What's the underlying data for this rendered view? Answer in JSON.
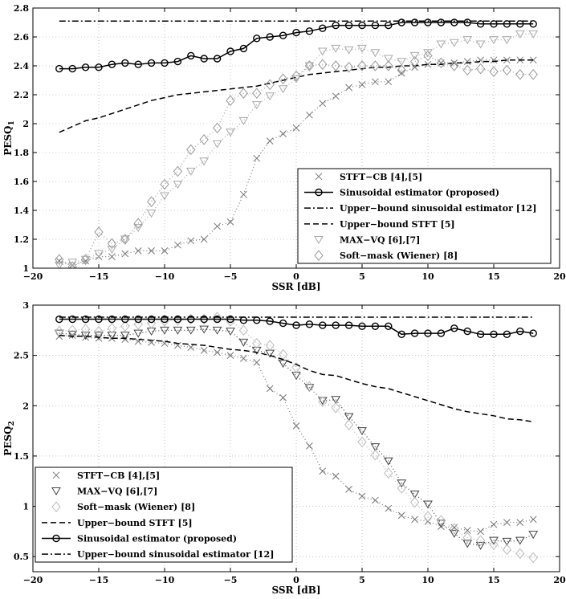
{
  "chart_data": [
    {
      "type": "line",
      "ylabel": "PESQ",
      "ylabel_sub": "1",
      "xlabel": "SSR [dB]",
      "xlim": [
        -20,
        20
      ],
      "ylim": [
        1,
        2.8
      ],
      "xticks": [
        "−20",
        "−15",
        "−10",
        "−5",
        "0",
        "5",
        "10",
        "15",
        "20"
      ],
      "yticks": [
        "1",
        "1.2",
        "1.4",
        "1.6",
        "1.8",
        "2",
        "2.2",
        "2.4",
        "2.6",
        "2.8"
      ],
      "grid": true,
      "legend_position": "bottom-right",
      "x": [
        -18,
        -17,
        -16,
        -15,
        -14,
        -13,
        -12,
        -11,
        -10,
        -9,
        -8,
        -7,
        -6,
        -5,
        -4,
        -3,
        -2,
        -1,
        0,
        1,
        2,
        3,
        4,
        5,
        6,
        7,
        8,
        9,
        10,
        11,
        12,
        13,
        14,
        15,
        16,
        17,
        18
      ],
      "series": [
        {
          "name": "STFT−CB [4],[5]",
          "marker": "x",
          "line": "dotted",
          "color": "#777777",
          "values": [
            1.05,
            1.02,
            1.05,
            1.08,
            1.08,
            1.1,
            1.12,
            1.12,
            1.12,
            1.16,
            1.19,
            1.2,
            1.29,
            1.32,
            1.51,
            1.76,
            1.88,
            1.93,
            1.97,
            2.06,
            2.14,
            2.19,
            2.25,
            2.27,
            2.29,
            2.29,
            2.35,
            2.39,
            2.41,
            2.42,
            2.42,
            2.43,
            2.44,
            2.44,
            2.44,
            2.44,
            2.44
          ]
        },
        {
          "name": "Sinusoidal estimator (proposed)",
          "marker": "o",
          "line": "solid",
          "color": "#000000",
          "values": [
            2.38,
            2.38,
            2.39,
            2.39,
            2.41,
            2.42,
            2.41,
            2.42,
            2.42,
            2.43,
            2.47,
            2.45,
            2.45,
            2.5,
            2.52,
            2.59,
            2.6,
            2.61,
            2.63,
            2.64,
            2.66,
            2.68,
            2.68,
            2.68,
            2.68,
            2.68,
            2.7,
            2.7,
            2.7,
            2.7,
            2.7,
            2.7,
            2.69,
            2.69,
            2.69,
            2.69,
            2.69
          ]
        },
        {
          "name": "Upper−bound sinusoidal estimator [12]",
          "marker": "none",
          "line": "dashdot",
          "color": "#000000",
          "values": [
            2.71,
            2.71,
            2.71,
            2.71,
            2.71,
            2.71,
            2.71,
            2.71,
            2.71,
            2.71,
            2.71,
            2.71,
            2.71,
            2.71,
            2.71,
            2.71,
            2.71,
            2.71,
            2.71,
            2.71,
            2.71,
            2.71,
            2.71,
            2.71,
            2.71,
            2.71,
            2.71,
            2.71,
            2.71,
            2.71,
            2.71,
            2.71,
            2.71,
            2.71,
            2.71,
            2.71,
            2.71
          ]
        },
        {
          "name": "Upper−bound STFT [5]",
          "marker": "none",
          "line": "dashed",
          "color": "#000000",
          "values": [
            1.94,
            1.98,
            2.02,
            2.04,
            2.07,
            2.1,
            2.13,
            2.16,
            2.18,
            2.2,
            2.21,
            2.22,
            2.23,
            2.24,
            2.25,
            2.26,
            2.28,
            2.3,
            2.32,
            2.34,
            2.35,
            2.36,
            2.37,
            2.38,
            2.39,
            2.39,
            2.4,
            2.4,
            2.41,
            2.41,
            2.42,
            2.42,
            2.43,
            2.43,
            2.44,
            2.44,
            2.44
          ]
        },
        {
          "name": "MAX−VQ [6],[7]",
          "marker": "triangle-down",
          "line": "dotted",
          "color": "#aaaaaa",
          "values": [
            1.02,
            1.04,
            1.06,
            1.1,
            1.13,
            1.2,
            1.28,
            1.38,
            1.5,
            1.58,
            1.67,
            1.74,
            1.86,
            1.94,
            2.02,
            2.13,
            2.19,
            2.24,
            2.31,
            2.4,
            2.5,
            2.52,
            2.51,
            2.52,
            2.49,
            2.45,
            2.43,
            2.47,
            2.49,
            2.55,
            2.56,
            2.58,
            2.55,
            2.58,
            2.58,
            2.62,
            2.62
          ]
        },
        {
          "name": "Soft−mask (Wiener) [8]",
          "marker": "diamond",
          "line": "dotted",
          "color": "#999999",
          "values": [
            1.06,
            1.01,
            1.06,
            1.25,
            1.17,
            1.2,
            1.31,
            1.46,
            1.58,
            1.67,
            1.82,
            1.89,
            1.97,
            2.16,
            2.21,
            2.21,
            2.27,
            2.31,
            2.33,
            2.4,
            2.41,
            2.4,
            2.39,
            2.4,
            2.4,
            2.4,
            2.37,
            2.43,
            2.47,
            2.42,
            2.4,
            2.37,
            2.38,
            2.36,
            2.37,
            2.34,
            2.34
          ]
        }
      ]
    },
    {
      "type": "line",
      "ylabel": "PESQ",
      "ylabel_sub": "2",
      "xlabel": "SSR [dB]",
      "xlim": [
        -20,
        20
      ],
      "ylim": [
        0.35,
        3
      ],
      "xticks": [
        "−20",
        "−15",
        "−10",
        "−5",
        "0",
        "5",
        "10",
        "15",
        "20"
      ],
      "yticks": [
        "0.5",
        "1",
        "1.5",
        "2",
        "2.5",
        "3"
      ],
      "grid": true,
      "legend_position": "bottom-left",
      "x": [
        -18,
        -17,
        -16,
        -15,
        -14,
        -13,
        -12,
        -11,
        -10,
        -9,
        -8,
        -7,
        -6,
        -5,
        -4,
        -3,
        -2,
        -1,
        0,
        1,
        2,
        3,
        4,
        5,
        6,
        7,
        8,
        9,
        10,
        11,
        12,
        13,
        14,
        15,
        16,
        17,
        18
      ],
      "series": [
        {
          "name": "STFT−CB [4],[5]",
          "marker": "x",
          "line": "dotted",
          "color": "#777777",
          "values": [
            2.69,
            2.7,
            2.68,
            2.67,
            2.67,
            2.66,
            2.64,
            2.63,
            2.62,
            2.6,
            2.58,
            2.55,
            2.53,
            2.5,
            2.47,
            2.43,
            2.17,
            2.08,
            1.8,
            1.6,
            1.35,
            1.3,
            1.17,
            1.1,
            1.06,
            0.98,
            0.91,
            0.87,
            0.85,
            0.8,
            0.79,
            0.76,
            0.75,
            0.82,
            0.84,
            0.84,
            0.87
          ]
        },
        {
          "name": "MAX−VQ [6],[7]",
          "marker": "triangle-down",
          "line": "dotted",
          "color": "#444444",
          "values": [
            2.72,
            2.71,
            2.7,
            2.7,
            2.7,
            2.7,
            2.72,
            2.74,
            2.75,
            2.75,
            2.75,
            2.76,
            2.75,
            2.74,
            2.63,
            2.55,
            2.52,
            2.42,
            2.3,
            2.18,
            2.05,
            2.06,
            1.89,
            1.75,
            1.59,
            1.45,
            1.23,
            1.12,
            1.02,
            0.83,
            0.73,
            0.63,
            0.61,
            0.66,
            0.65,
            0.66,
            0.72
          ]
        },
        {
          "name": "Soft−mask (Wiener) [8]",
          "marker": "diamond",
          "line": "dotted",
          "color": "#bbbbbb",
          "values": [
            2.74,
            2.75,
            2.76,
            2.74,
            2.77,
            2.79,
            2.81,
            2.82,
            2.84,
            2.85,
            2.86,
            2.86,
            2.88,
            2.84,
            2.75,
            2.62,
            2.6,
            2.51,
            2.38,
            2.19,
            2.04,
            1.98,
            1.81,
            1.64,
            1.51,
            1.33,
            1.18,
            1.04,
            0.9,
            0.86,
            0.78,
            0.69,
            0.66,
            0.62,
            0.57,
            0.53,
            0.49
          ]
        },
        {
          "name": "Upper−bound STFT [5]",
          "marker": "none",
          "line": "dashed",
          "color": "#000000",
          "values": [
            2.7,
            2.69,
            2.69,
            2.68,
            2.67,
            2.67,
            2.66,
            2.65,
            2.64,
            2.62,
            2.61,
            2.6,
            2.58,
            2.56,
            2.55,
            2.53,
            2.5,
            2.46,
            2.41,
            2.35,
            2.31,
            2.3,
            2.26,
            2.22,
            2.19,
            2.17,
            2.13,
            2.09,
            2.05,
            2.01,
            1.97,
            1.94,
            1.92,
            1.9,
            1.87,
            1.86,
            1.84
          ]
        },
        {
          "name": "Sinusoidal estimator (proposed)",
          "marker": "o",
          "line": "solid",
          "color": "#000000",
          "values": [
            2.86,
            2.86,
            2.86,
            2.86,
            2.86,
            2.86,
            2.86,
            2.86,
            2.86,
            2.86,
            2.86,
            2.86,
            2.86,
            2.86,
            2.85,
            2.85,
            2.84,
            2.82,
            2.8,
            2.81,
            2.8,
            2.8,
            2.8,
            2.79,
            2.79,
            2.79,
            2.71,
            2.72,
            2.72,
            2.72,
            2.77,
            2.74,
            2.71,
            2.71,
            2.71,
            2.74,
            2.72
          ]
        },
        {
          "name": "Upper−bound sinusoidal estimator [12]",
          "marker": "none",
          "line": "dashdot",
          "color": "#000000",
          "values": [
            2.88,
            2.88,
            2.88,
            2.88,
            2.88,
            2.88,
            2.88,
            2.88,
            2.88,
            2.88,
            2.88,
            2.88,
            2.88,
            2.88,
            2.88,
            2.88,
            2.88,
            2.88,
            2.88,
            2.88,
            2.88,
            2.88,
            2.88,
            2.88,
            2.88,
            2.88,
            2.88,
            2.88,
            2.88,
            2.88,
            2.88,
            2.88,
            2.88,
            2.88,
            2.88,
            2.88,
            2.88
          ]
        }
      ]
    }
  ]
}
